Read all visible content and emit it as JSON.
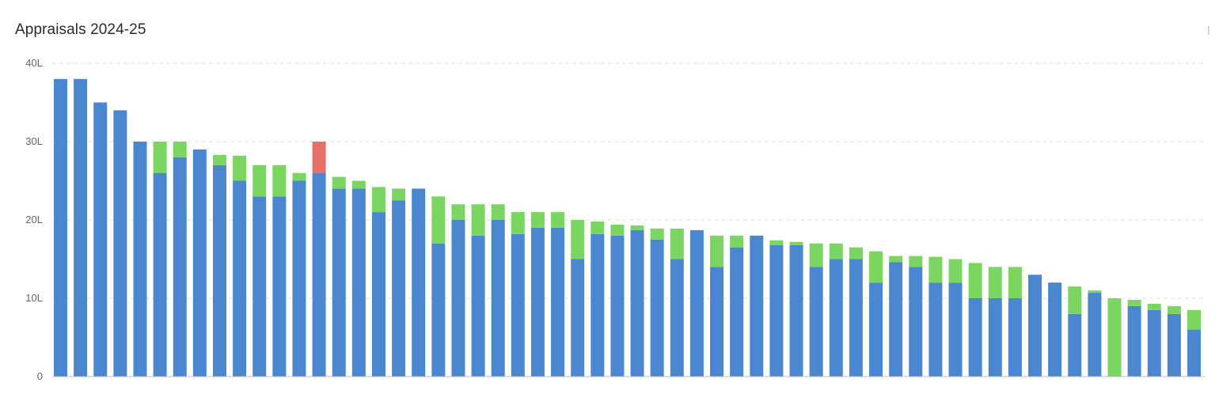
{
  "chart_data": {
    "type": "bar",
    "stacked": true,
    "title": "Appraisals 2024-25",
    "xlabel": "",
    "ylabel": "",
    "ylim": [
      0,
      40
    ],
    "y_ticks": [
      0,
      10,
      20,
      30,
      40
    ],
    "y_tick_labels": [
      "0",
      "10L",
      "20L",
      "30L",
      "40L"
    ],
    "grid": true,
    "legend": "none",
    "colors": {
      "base": "#4a87d0",
      "increase": "#7bd561",
      "decrease": "#e8706a",
      "grid": "#e2e2e2",
      "axis": "#bdbdbd"
    },
    "series": [
      {
        "values": [
          38,
          38,
          35,
          34,
          30,
          26,
          28,
          29,
          27,
          25,
          23,
          23,
          25,
          26,
          24,
          24,
          21,
          22.5,
          24,
          17,
          20,
          18,
          20,
          18.2,
          19,
          19,
          15,
          18.2,
          18,
          18.7,
          17.5,
          15,
          18.7,
          14,
          16.5,
          18,
          16.8,
          16.8,
          14,
          15,
          15,
          12,
          14.6,
          14,
          12,
          12,
          10,
          10,
          10,
          13,
          12,
          8,
          10.7,
          0,
          9,
          8.5,
          8,
          6
        ]
      },
      {
        "values": [
          0,
          0,
          0,
          0,
          0,
          4,
          2,
          0,
          1.3,
          3.2,
          4,
          4,
          1,
          0,
          1.5,
          1,
          3.2,
          1.5,
          0,
          6,
          2,
          4,
          2,
          2.8,
          2,
          2,
          5,
          1.6,
          1.4,
          0.6,
          1.4,
          3.9,
          0,
          4,
          1.5,
          0,
          0.6,
          0.4,
          3,
          2,
          1.5,
          4,
          0.8,
          1.4,
          3.3,
          3,
          4.5,
          4,
          4,
          0,
          0,
          3.5,
          0.3,
          10,
          0.8,
          0.8,
          1,
          2.5
        ]
      },
      {
        "values": [
          0,
          0,
          0,
          0,
          0,
          0,
          0,
          0,
          0,
          0,
          0,
          0,
          0,
          4,
          0,
          0,
          0,
          0,
          0,
          0,
          0,
          0,
          0,
          0,
          0,
          0,
          0,
          0,
          0,
          0,
          0,
          0,
          0,
          0,
          0,
          0,
          0,
          0,
          0,
          0,
          0,
          0,
          0,
          0,
          0,
          0,
          0,
          0,
          0,
          0,
          0,
          0,
          0,
          0,
          0,
          0,
          0,
          0
        ]
      }
    ]
  }
}
